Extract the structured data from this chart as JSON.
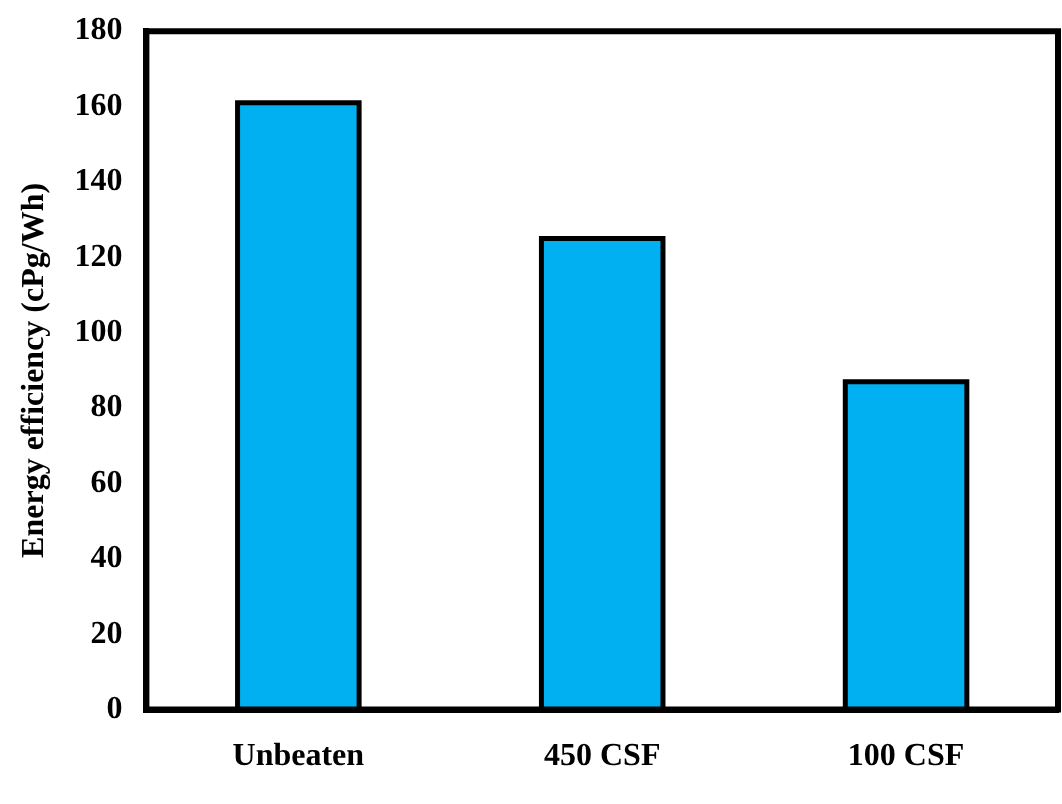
{
  "chart_data": {
    "type": "bar",
    "ylabel": "Energy efficiency (cPg/Wh)",
    "categories": [
      "Unbeaten",
      "450 CSF",
      "100 CSF"
    ],
    "values": [
      161,
      125,
      87
    ],
    "color": "#00b0f0",
    "ylim": [
      0,
      180
    ],
    "yticks": [
      0,
      20,
      40,
      60,
      80,
      100,
      120,
      140,
      160,
      180
    ],
    "grid": false,
    "legend": false
  }
}
